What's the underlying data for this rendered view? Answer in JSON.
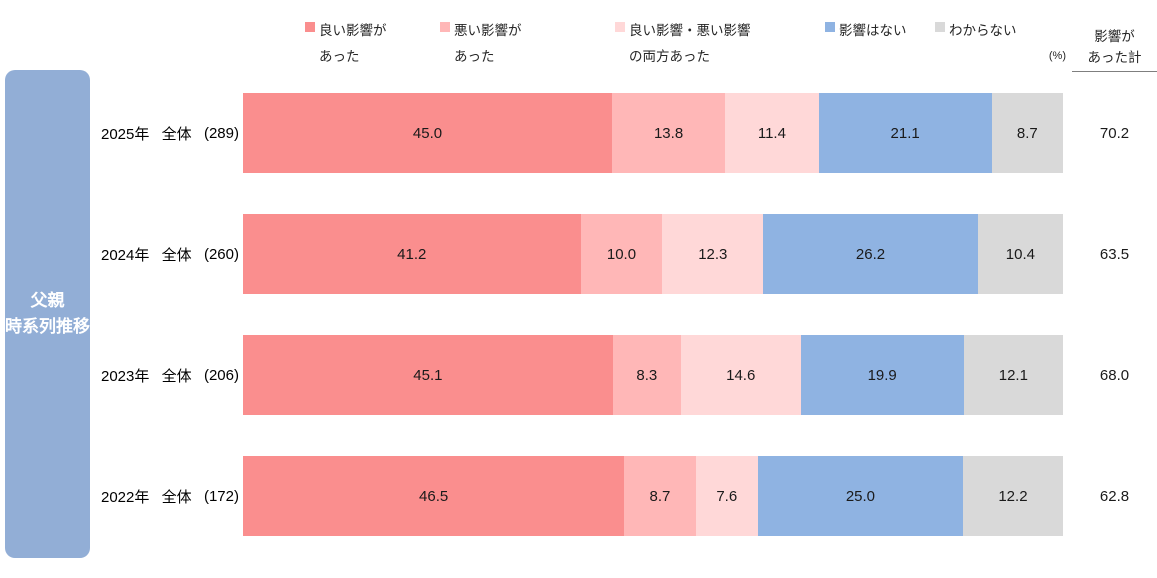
{
  "sidebar": {
    "line1": "父親",
    "line2": "時系列推移",
    "color": "#92AED6",
    "text_color": "#FFFFFF"
  },
  "legend": {
    "items": [
      {
        "lines": [
          "良い影響が",
          "あった"
        ],
        "color": "#FA8E8E"
      },
      {
        "lines": [
          "悪い影響が",
          "あった"
        ],
        "color": "#FFB7B7"
      },
      {
        "lines": [
          "良い影響・悪い影響",
          "の両方あった"
        ],
        "color": "#FFD8D8"
      },
      {
        "lines": [
          "影響はない"
        ],
        "color": "#8FB3E2"
      },
      {
        "lines": [
          "わからない"
        ],
        "color": "#D9D9D9"
      }
    ]
  },
  "unit_label": "(%)",
  "total_column": {
    "header_line1": "影響が",
    "header_line2": "あった計"
  },
  "chart_data": {
    "type": "bar",
    "variant": "horizontal-stacked",
    "unit": "%",
    "xlim": [
      0,
      100
    ],
    "group_label": "父親 時系列推移",
    "series": [
      "良い影響があった",
      "悪い影響があった",
      "良い影響・悪い影響の両方あった",
      "影響はない",
      "わからない"
    ],
    "colors": [
      "#FA8E8E",
      "#FFB7B7",
      "#FFD8D8",
      "#8FB3E2",
      "#D9D9D9"
    ],
    "total_column_label": "影響があった計",
    "rows": [
      {
        "year": "2025年",
        "scope": "全体",
        "n": "(289)",
        "values": [
          45.0,
          13.8,
          11.4,
          21.1,
          8.7
        ],
        "total_affected": "70.2"
      },
      {
        "year": "2024年",
        "scope": "全体",
        "n": "(260)",
        "values": [
          41.2,
          10.0,
          12.3,
          26.2,
          10.4
        ],
        "total_affected": "63.5"
      },
      {
        "year": "2023年",
        "scope": "全体",
        "n": "(206)",
        "values": [
          45.1,
          8.3,
          14.6,
          19.9,
          12.1
        ],
        "total_affected": "68.0"
      },
      {
        "year": "2022年",
        "scope": "全体",
        "n": "(172)",
        "values": [
          46.5,
          8.7,
          7.6,
          25.0,
          12.2
        ],
        "total_affected": "62.8"
      }
    ]
  }
}
